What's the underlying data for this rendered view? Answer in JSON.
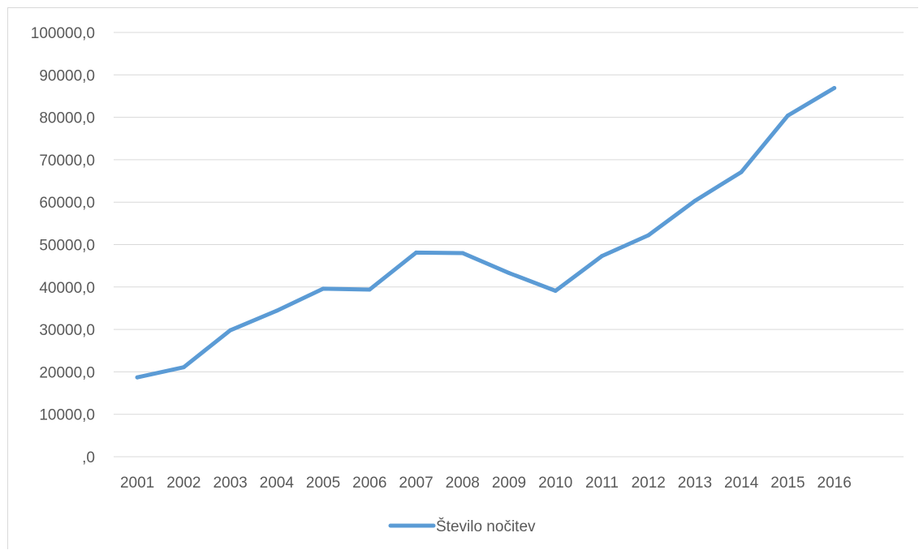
{
  "chart_data": {
    "type": "line",
    "title": "",
    "xlabel": "",
    "ylabel": "",
    "categories": [
      "2001",
      "2002",
      "2003",
      "2004",
      "2005",
      "2006",
      "2007",
      "2008",
      "2009",
      "2010",
      "2011",
      "2012",
      "2013",
      "2014",
      "2015",
      "2016"
    ],
    "series": [
      {
        "name": "Število nočitev",
        "color": "#5b9bd5",
        "values": [
          18700,
          21100,
          29800,
          34400,
          39600,
          39400,
          48100,
          48000,
          43300,
          39100,
          47300,
          52200,
          60300,
          67100,
          80400,
          86900
        ]
      }
    ],
    "ylim": [
      0,
      100000
    ],
    "y_ticks": [
      0,
      10000,
      20000,
      30000,
      40000,
      50000,
      60000,
      70000,
      80000,
      90000,
      100000
    ],
    "y_tick_labels": [
      ",0",
      "10000,0",
      "20000,0",
      "30000,0",
      "40000,0",
      "50000,0",
      "60000,0",
      "70000,0",
      "80000,0",
      "90000,0",
      "100000,0"
    ],
    "grid": true,
    "legend_position": "bottom"
  }
}
